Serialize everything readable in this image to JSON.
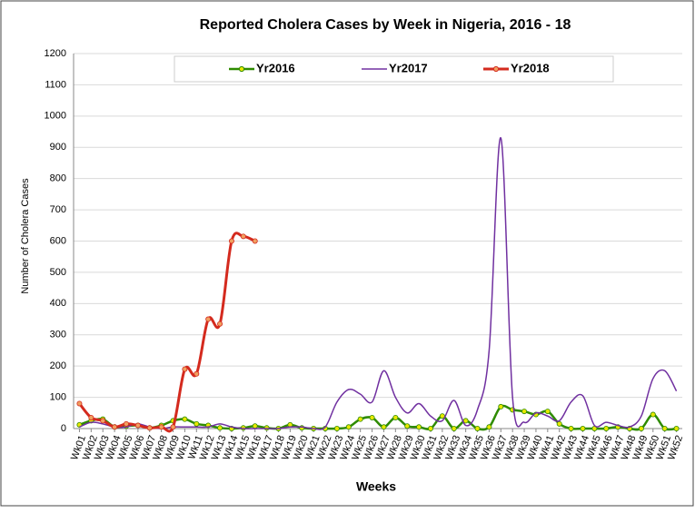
{
  "chart_data": {
    "type": "line",
    "title": "Reported Cholera Cases by Week in Nigeria, 2016 - 18",
    "x_label": "Weeks",
    "y_label": "Number of Cholera Cases",
    "categories": [
      "Wk01",
      "Wk02",
      "Wk03",
      "Wk04",
      "Wk05",
      "Wk06",
      "Wk07",
      "Wk08",
      "Wk09",
      "Wk10",
      "Wk11",
      "Wk12",
      "Wk13",
      "Wk14",
      "Wk15",
      "Wk16",
      "Wk17",
      "Wk18",
      "Wk19",
      "Wk20",
      "Wk21",
      "Wk22",
      "Wk23",
      "Wk24",
      "Wk25",
      "Wk26",
      "Wk27",
      "Wk28",
      "Wk29",
      "Wk30",
      "Wk31",
      "Wk32",
      "Wk33",
      "Wk34",
      "Wk35",
      "Wk36",
      "Wk37",
      "Wk38",
      "Wk39",
      "Wk40",
      "Wk41",
      "Wk42",
      "Wk43",
      "Wk44",
      "Wk45",
      "Wk46",
      "Wk47",
      "Wk48",
      "Wk49",
      "Wk50",
      "Wk51",
      "Wk52"
    ],
    "series": [
      {
        "name": "Yr2016",
        "color": "#2e8b00",
        "marker_color": "#e8e800",
        "line_width": 2.5,
        "values": [
          12,
          25,
          30,
          5,
          8,
          10,
          2,
          10,
          25,
          30,
          15,
          10,
          2,
          0,
          2,
          8,
          2,
          0,
          12,
          2,
          0,
          0,
          0,
          5,
          30,
          35,
          5,
          35,
          8,
          5,
          0,
          40,
          0,
          25,
          0,
          5,
          70,
          60,
          55,
          45,
          55,
          15,
          0,
          0,
          0,
          0,
          5,
          0,
          0,
          45,
          0,
          0
        ]
      },
      {
        "name": "Yr2017",
        "color": "#7030a0",
        "line_width": 1.5,
        "values": [
          5,
          20,
          15,
          5,
          5,
          15,
          5,
          0,
          5,
          5,
          5,
          5,
          15,
          5,
          0,
          0,
          0,
          0,
          5,
          5,
          0,
          5,
          85,
          125,
          110,
          85,
          185,
          100,
          50,
          80,
          40,
          25,
          90,
          10,
          60,
          250,
          930,
          100,
          20,
          50,
          40,
          25,
          85,
          105,
          10,
          20,
          10,
          5,
          40,
          160,
          185,
          120
        ]
      },
      {
        "name": "Yr2018",
        "color": "#d42a1e",
        "marker_color": "#f0a060",
        "line_width": 3,
        "values": [
          80,
          35,
          25,
          5,
          15,
          10,
          2,
          5,
          5,
          190,
          175,
          350,
          335,
          600,
          615,
          600,
          null,
          null,
          null,
          null,
          null,
          null,
          null,
          null,
          null,
          null,
          null,
          null,
          null,
          null,
          null,
          null,
          null,
          null,
          null,
          null,
          null,
          null,
          null,
          null,
          null,
          null,
          null,
          null,
          null,
          null,
          null,
          null,
          null,
          null,
          null,
          null
        ]
      }
    ],
    "ylim": [
      0,
      1200
    ],
    "yticks": [
      0,
      100,
      200,
      300,
      400,
      500,
      600,
      700,
      800,
      900,
      1000,
      1100,
      1200
    ],
    "grid": true,
    "legend": "top"
  }
}
